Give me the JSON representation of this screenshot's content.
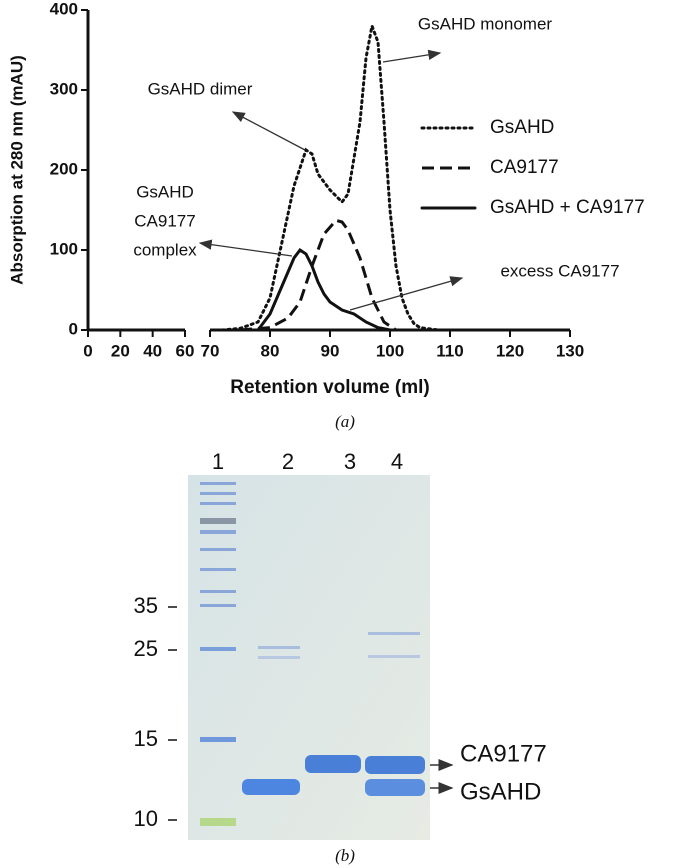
{
  "chart_data": {
    "type": "line",
    "x_label": "Retention volume (ml)",
    "y_label": "Absorption at 280 nm (mAU)",
    "xlim": [
      0,
      130
    ],
    "x_break": [
      60,
      70
    ],
    "xticks": [
      0,
      20,
      40,
      60,
      70,
      80,
      90,
      100,
      110,
      120,
      130
    ],
    "ylim": [
      0,
      400
    ],
    "yticks": [
      0,
      100,
      200,
      300,
      400
    ],
    "legend": "upper right",
    "series": [
      {
        "name": "GsAHD",
        "color": "#111111",
        "style": "dotted",
        "x": [
          72,
          75,
          78,
          80,
          82,
          84,
          86,
          87,
          88,
          90,
          92,
          93,
          95,
          96,
          97,
          98,
          99,
          100,
          101,
          102,
          103,
          104,
          105,
          108
        ],
        "values": [
          0,
          2,
          10,
          40,
          110,
          180,
          225,
          220,
          195,
          175,
          160,
          170,
          260,
          340,
          380,
          360,
          260,
          150,
          80,
          40,
          20,
          8,
          3,
          0
        ]
      },
      {
        "name": "CA9177",
        "color": "#111111",
        "style": "dashed",
        "x": [
          75,
          80,
          83,
          85,
          87,
          89,
          91,
          92,
          93,
          95,
          97,
          99,
          101
        ],
        "values": [
          0,
          3,
          15,
          35,
          80,
          120,
          137,
          135,
          125,
          90,
          40,
          10,
          0
        ]
      },
      {
        "name": "GsAHD + CA9177",
        "color": "#111111",
        "style": "solid",
        "x": [
          78,
          80,
          82,
          84,
          85,
          86,
          87,
          88,
          89,
          90,
          92,
          94,
          96,
          98,
          100
        ],
        "values": [
          0,
          20,
          55,
          90,
          100,
          95,
          80,
          60,
          45,
          35,
          25,
          20,
          10,
          3,
          0
        ]
      }
    ],
    "annotations": [
      "GsAHD monomer",
      "GsAHD dimer",
      [
        "GsAHD",
        "CA9177",
        "complex"
      ],
      "excess CA9177"
    ]
  },
  "gel": {
    "lane_labels": [
      "1",
      "2",
      "3",
      "4"
    ],
    "marker_labels": [
      "35",
      "25",
      "15",
      "10"
    ],
    "band_labels": [
      "CA9177",
      "GsAHD"
    ]
  },
  "panel_labels": [
    "(a)",
    "(b)"
  ]
}
